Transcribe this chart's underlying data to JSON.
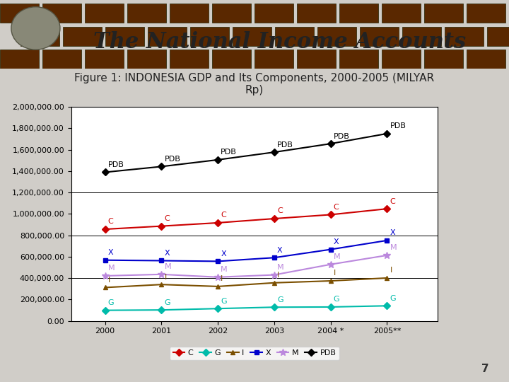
{
  "title": "The National Income Accounts",
  "subtitle": "Figure 1: INDONESIA GDP and Its Components, 2000-2005 (MILYAR\nRp)",
  "years": [
    2000,
    2001,
    2002,
    2003,
    2004,
    2005
  ],
  "x_labels": [
    "2000",
    "2001",
    "2002",
    "2003",
    "2004 *",
    "2005**"
  ],
  "series": {
    "C": {
      "values": [
        857000,
        886000,
        917000,
        956000,
        993000,
        1048000
      ],
      "color": "#CC0000",
      "marker": "D",
      "markersize": 5
    },
    "G": {
      "values": [
        99000,
        102000,
        115000,
        128000,
        130000,
        141000
      ],
      "color": "#00BBAA",
      "marker": "D",
      "markersize": 5
    },
    "I": {
      "values": [
        312000,
        340000,
        322000,
        356000,
        374000,
        401000
      ],
      "color": "#7B4F00",
      "marker": "^",
      "markersize": 5
    },
    "X": {
      "values": [
        568000,
        563000,
        557000,
        591000,
        668000,
        752000
      ],
      "color": "#0000CC",
      "marker": "s",
      "markersize": 5
    },
    "M": {
      "values": [
        421000,
        435000,
        409000,
        430000,
        528000,
        613000
      ],
      "color": "#BB88DD",
      "marker": "*",
      "markersize": 7
    },
    "PDB": {
      "values": [
        1389770,
        1442985,
        1506124,
        1577171,
        1656516,
        1750815
      ],
      "color": "#000000",
      "marker": "D",
      "markersize": 5
    }
  },
  "ylim": [
    0,
    2000000
  ],
  "yticks": [
    0,
    200000,
    400000,
    600000,
    800000,
    1000000,
    1200000,
    1400000,
    1600000,
    1800000,
    2000000
  ],
  "grid_lines": [
    400000,
    800000,
    1200000
  ],
  "slide_bg": "#d0cdc8",
  "chart_bg": "#ffffff",
  "header_color": "#3a2010",
  "title_color": "#222222",
  "title_fontsize": 22,
  "subtitle_fontsize": 11,
  "tick_fontsize": 8,
  "label_fontsize": 8,
  "page_number": "7"
}
